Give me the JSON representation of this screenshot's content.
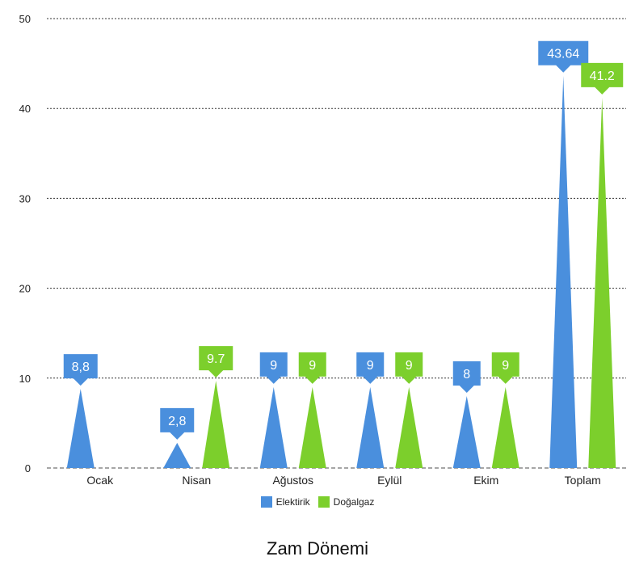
{
  "chart_data": {
    "type": "bar",
    "bar_shape": "triangle",
    "xlabel": "Zam Dönemi",
    "categories": [
      "Ocak",
      "Nisan",
      "Ağustos",
      "Eylül",
      "Ekim",
      "Toplam"
    ],
    "ylim": [
      0,
      50
    ],
    "y_ticks": [
      0,
      10,
      20,
      30,
      40,
      50
    ],
    "grid": true,
    "legend_position": "bottom",
    "series": [
      {
        "name": "Elektirik",
        "color": "#4a8fdd",
        "values": [
          8.8,
          2.8,
          9,
          9,
          8,
          43.64
        ],
        "labels": [
          "8,8",
          "2,8",
          "9",
          "9",
          "8",
          "43.64"
        ]
      },
      {
        "name": "Doğalgaz",
        "color": "#7ccf2c",
        "values": [
          null,
          9.7,
          9,
          9,
          9,
          41.2
        ],
        "labels": [
          "",
          "9.7",
          "9",
          "9",
          "9",
          "41.2"
        ]
      }
    ]
  }
}
